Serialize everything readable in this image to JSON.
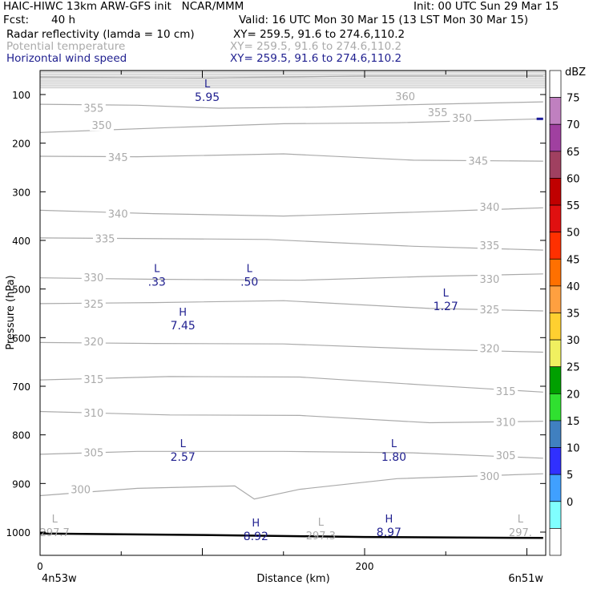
{
  "header": {
    "title_left": "HAIC-HIWC 13km ARW-GFS init   NCAR/MMM",
    "init": "Init: 00 UTC Sun 29 Mar 15",
    "fcst_label": "Fcst:",
    "fcst_value": "40 h",
    "valid": "Valid: 16 UTC Mon 30 Mar 15 (13 LST Mon 30 Mar 15)",
    "fields": [
      {
        "name": "Radar reflectivity (lamda = 10 cm)",
        "xy": "XY= 259.5, 91.6 to 274.6,110.2"
      },
      {
        "name": "Potential temperature",
        "xy": "XY= 259.5, 91.6 to 274.6,110.2"
      },
      {
        "name": "Horizontal wind speed",
        "xy": "XY= 259.5, 91.6 to 274.6,110.2"
      }
    ],
    "colors": {
      "potential_temperature": "#aaaaaa",
      "wind_speed": "#1f1f8f"
    }
  },
  "chart_data": {
    "type": "cross-section",
    "ylabel": "Pressure (hPa)",
    "xlabel": "Distance (km)",
    "y_ticks": [
      100,
      200,
      300,
      400,
      500,
      600,
      700,
      800,
      900,
      1000
    ],
    "x_ticks": [
      0,
      200
    ],
    "ylim": [
      1050,
      50
    ],
    "xlim": [
      0,
      310
    ],
    "x_end_labels": [
      "4n53w",
      "6n51w"
    ],
    "theta_contours": [
      {
        "label": "360",
        "pts": [
          [
            0,
            64
          ],
          [
            100,
            66
          ],
          [
            200,
            62
          ],
          [
            310,
            62
          ]
        ],
        "labels_at": [
          [
            225,
            103
          ]
        ]
      },
      {
        "label": "355",
        "pts": [
          [
            0,
            120
          ],
          [
            60,
            122
          ],
          [
            110,
            128
          ],
          [
            170,
            126
          ],
          [
            240,
            120
          ],
          [
            310,
            115
          ]
        ],
        "labels_at": [
          [
            33,
            127
          ],
          [
            245,
            136
          ]
        ]
      },
      {
        "label": "350",
        "pts": [
          [
            0,
            178
          ],
          [
            80,
            168
          ],
          [
            150,
            160
          ],
          [
            220,
            158
          ],
          [
            310,
            150
          ]
        ],
        "labels_at": [
          [
            38,
            163
          ],
          [
            260,
            148
          ]
        ]
      },
      {
        "label": "345",
        "pts": [
          [
            0,
            227
          ],
          [
            60,
            228
          ],
          [
            150,
            222
          ],
          [
            230,
            235
          ],
          [
            310,
            237
          ]
        ],
        "labels_at": [
          [
            48,
            229
          ],
          [
            270,
            236
          ]
        ]
      },
      {
        "label": "340",
        "pts": [
          [
            0,
            338
          ],
          [
            70,
            345
          ],
          [
            150,
            350
          ],
          [
            230,
            342
          ],
          [
            310,
            333
          ]
        ],
        "labels_at": [
          [
            48,
            345
          ],
          [
            277,
            331
          ]
        ]
      },
      {
        "label": "335",
        "pts": [
          [
            0,
            395
          ],
          [
            60,
            396
          ],
          [
            140,
            398
          ],
          [
            230,
            412
          ],
          [
            310,
            420
          ]
        ],
        "labels_at": [
          [
            40,
            396
          ],
          [
            277,
            410
          ]
        ]
      },
      {
        "label": "330",
        "pts": [
          [
            0,
            477
          ],
          [
            70,
            480
          ],
          [
            160,
            482
          ],
          [
            240,
            474
          ],
          [
            310,
            469
          ]
        ],
        "labels_at": [
          [
            33,
            476
          ],
          [
            277,
            479
          ]
        ]
      },
      {
        "label": "325",
        "pts": [
          [
            0,
            530
          ],
          [
            70,
            528
          ],
          [
            150,
            524
          ],
          [
            240,
            540
          ],
          [
            310,
            545
          ]
        ],
        "labels_at": [
          [
            33,
            530
          ],
          [
            277,
            542
          ]
        ]
      },
      {
        "label": "320",
        "pts": [
          [
            0,
            610
          ],
          [
            70,
            612
          ],
          [
            150,
            613
          ],
          [
            240,
            624
          ],
          [
            310,
            630
          ]
        ],
        "labels_at": [
          [
            33,
            608
          ],
          [
            277,
            622
          ]
        ]
      },
      {
        "label": "315",
        "pts": [
          [
            0,
            687
          ],
          [
            80,
            680
          ],
          [
            160,
            681
          ],
          [
            240,
            698
          ],
          [
            310,
            712
          ]
        ],
        "labels_at": [
          [
            33,
            685
          ],
          [
            287,
            710
          ]
        ]
      },
      {
        "label": "310",
        "pts": [
          [
            0,
            752
          ],
          [
            80,
            759
          ],
          [
            160,
            760
          ],
          [
            240,
            775
          ],
          [
            310,
            772
          ]
        ],
        "labels_at": [
          [
            33,
            754
          ],
          [
            287,
            773
          ]
        ]
      },
      {
        "label": "305",
        "pts": [
          [
            0,
            840
          ],
          [
            60,
            834
          ],
          [
            150,
            834
          ],
          [
            230,
            837
          ],
          [
            310,
            848
          ]
        ],
        "labels_at": [
          [
            33,
            836
          ],
          [
            287,
            842
          ]
        ]
      },
      {
        "label": "300",
        "pts": [
          [
            0,
            925
          ],
          [
            60,
            910
          ],
          [
            120,
            905
          ],
          [
            132,
            932
          ],
          [
            160,
            912
          ],
          [
            220,
            890
          ],
          [
            310,
            880
          ]
        ],
        "labels_at": [
          [
            25,
            912
          ],
          [
            277,
            885
          ]
        ]
      }
    ],
    "wind_extrema": [
      {
        "type": "L",
        "value": "5.95",
        "x": 103,
        "p": 100
      },
      {
        "type": "L",
        "value": ".33",
        "x": 72,
        "p": 480
      },
      {
        "type": "L",
        "value": ".50",
        "x": 129,
        "p": 480
      },
      {
        "type": "L",
        "value": "1.27",
        "x": 250,
        "p": 530
      },
      {
        "type": "H",
        "value": "7.45",
        "x": 88,
        "p": 570
      },
      {
        "type": "L",
        "value": "2.57",
        "x": 88,
        "p": 840
      },
      {
        "type": "L",
        "value": "1.80",
        "x": 218,
        "p": 840
      },
      {
        "type": "H",
        "value": "8.92",
        "x": 133,
        "p": 1003
      },
      {
        "type": "H",
        "value": "8.97",
        "x": 215,
        "p": 995
      }
    ],
    "theta_extrema": [
      {
        "type": "L",
        "value": "297.7",
        "x": 9,
        "p": 997
      },
      {
        "type": "L",
        "value": "297.3",
        "x": 173,
        "p": 1003
      },
      {
        "type": "L",
        "value": "297.",
        "x": 296,
        "p": 997
      }
    ],
    "surface_pressure": [
      [
        0,
        1003
      ],
      [
        100,
        1006
      ],
      [
        200,
        1010
      ],
      [
        310,
        1012
      ]
    ],
    "reflectivity_echo": {
      "x": [
        306,
        310
      ],
      "p": 150,
      "color": "#1a1a9a"
    },
    "colorbar": {
      "unit": "dBZ",
      "levels": [
        75,
        70,
        65,
        60,
        55,
        50,
        45,
        40,
        35,
        30,
        25,
        20,
        15,
        10,
        5,
        0
      ],
      "colors": [
        "#ffffff",
        "#c080c0",
        "#a040a0",
        "#a04060",
        "#c00000",
        "#e01010",
        "#ff3000",
        "#ff7000",
        "#ffa040",
        "#ffd030",
        "#f0f060",
        "#00a000",
        "#30e030",
        "#4080c0",
        "#3030ff",
        "#40a0ff",
        "#80ffff",
        "#ffffff"
      ]
    }
  }
}
